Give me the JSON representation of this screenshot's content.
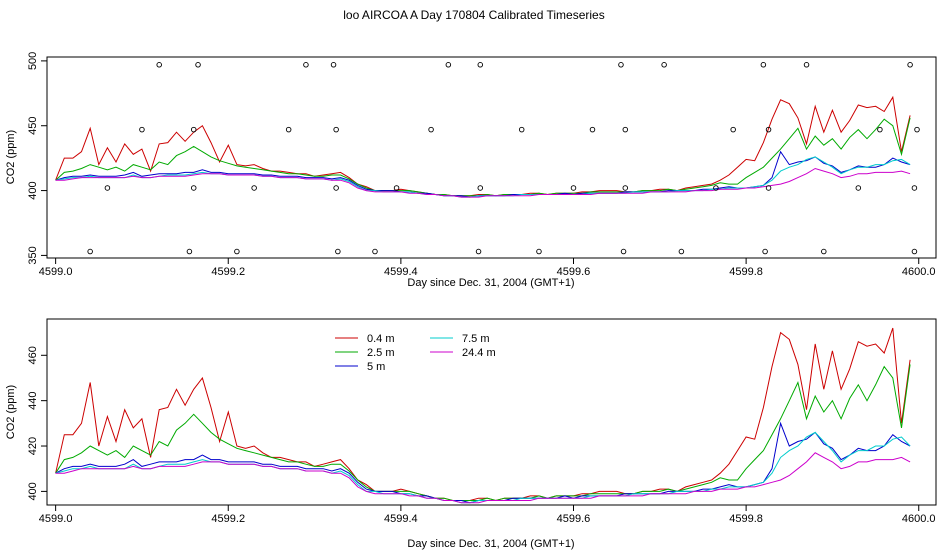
{
  "title": "loo AIRCOA A  Day 170804  Calibrated Timeseries",
  "colors": {
    "0.4 m": "#cc0000",
    "2.5 m": "#00aa00",
    "5 m": "#0000cc",
    "7.5 m": "#00cccc",
    "24.4 m": "#cc00cc"
  },
  "chart_data": [
    {
      "type": "line+scatter",
      "xlabel": "Day since Dec. 31, 2004 (GMT+1)",
      "ylabel": "CO2 (ppm)",
      "xlim": [
        4598.99,
        4600.02
      ],
      "ylim": [
        348,
        503
      ],
      "xticks": [
        4599.0,
        4599.2,
        4599.4,
        4599.6,
        4599.8,
        4600.0
      ],
      "xtick_labels": [
        "4599.0",
        "4599.2",
        "4599.4",
        "4599.6",
        "4599.8",
        "4600.0"
      ],
      "yticks": [
        350,
        400,
        450,
        500
      ],
      "ytick_labels": [
        "350",
        "400",
        "450",
        "500"
      ],
      "x": [
        4599.0,
        4599.01,
        4599.02,
        4599.03,
        4599.04,
        4599.05,
        4599.06,
        4599.07,
        4599.08,
        4599.09,
        4599.1,
        4599.11,
        4599.12,
        4599.13,
        4599.14,
        4599.15,
        4599.16,
        4599.17,
        4599.18,
        4599.19,
        4599.2,
        4599.21,
        4599.22,
        4599.23,
        4599.24,
        4599.25,
        4599.26,
        4599.27,
        4599.28,
        4599.29,
        4599.3,
        4599.31,
        4599.32,
        4599.33,
        4599.34,
        4599.35,
        4599.36,
        4599.37,
        4599.38,
        4599.39,
        4599.4,
        4599.41,
        4599.42,
        4599.43,
        4599.44,
        4599.45,
        4599.46,
        4599.47,
        4599.48,
        4599.49,
        4599.5,
        4599.51,
        4599.52,
        4599.53,
        4599.54,
        4599.55,
        4599.56,
        4599.57,
        4599.58,
        4599.59,
        4599.6,
        4599.61,
        4599.62,
        4599.63,
        4599.64,
        4599.65,
        4599.66,
        4599.67,
        4599.68,
        4599.69,
        4599.7,
        4599.71,
        4599.72,
        4599.73,
        4599.74,
        4599.75,
        4599.76,
        4599.77,
        4599.78,
        4599.79,
        4599.8,
        4599.81,
        4599.82,
        4599.83,
        4599.84,
        4599.85,
        4599.86,
        4599.87,
        4599.88,
        4599.89,
        4599.9,
        4599.91,
        4599.92,
        4599.93,
        4599.94,
        4599.95,
        4599.96,
        4599.97,
        4599.98,
        4599.99
      ],
      "series": [
        {
          "name": "0.4 m",
          "values": [
            408,
            425,
            425,
            430,
            448,
            420,
            433,
            422,
            436,
            428,
            432,
            415,
            436,
            437,
            445,
            438,
            445,
            450,
            437,
            422,
            435,
            420,
            419,
            420,
            417,
            415,
            415,
            414,
            413,
            413,
            411,
            412,
            413,
            414,
            410,
            405,
            403,
            400,
            400,
            400,
            401,
            400,
            399,
            398,
            397,
            397,
            396,
            396,
            396,
            397,
            397,
            396,
            397,
            397,
            397,
            398,
            398,
            397,
            398,
            398,
            398,
            399,
            399,
            400,
            400,
            400,
            399,
            399,
            400,
            400,
            401,
            401,
            400,
            402,
            403,
            404,
            405,
            408,
            412,
            418,
            424,
            423,
            437,
            455,
            470,
            467,
            456,
            436,
            465,
            445,
            462,
            445,
            454,
            466,
            464,
            465,
            461,
            472,
            430,
            458
          ]
        },
        {
          "name": "2.5 m",
          "values": [
            408,
            414,
            415,
            417,
            420,
            418,
            416,
            418,
            415,
            420,
            418,
            416,
            422,
            420,
            427,
            430,
            434,
            430,
            426,
            423,
            421,
            419,
            418,
            417,
            416,
            415,
            414,
            413,
            413,
            412,
            411,
            411,
            412,
            412,
            409,
            405,
            402,
            400,
            400,
            400,
            400,
            400,
            399,
            398,
            397,
            397,
            396,
            396,
            396,
            396,
            397,
            396,
            397,
            397,
            397,
            397,
            398,
            397,
            398,
            398,
            398,
            398,
            399,
            399,
            399,
            399,
            399,
            399,
            400,
            400,
            400,
            401,
            400,
            401,
            402,
            403,
            404,
            406,
            405,
            405,
            410,
            414,
            418,
            425,
            432,
            440,
            448,
            432,
            442,
            435,
            440,
            432,
            441,
            447,
            440,
            447,
            455,
            450,
            428,
            456
          ]
        },
        {
          "name": "5 m",
          "values": [
            408,
            410,
            411,
            411,
            412,
            411,
            411,
            411,
            412,
            414,
            411,
            412,
            413,
            413,
            413,
            414,
            414,
            416,
            414,
            414,
            413,
            413,
            413,
            413,
            412,
            412,
            411,
            411,
            411,
            410,
            410,
            410,
            409,
            410,
            408,
            404,
            401,
            400,
            400,
            400,
            399,
            399,
            398,
            398,
            397,
            396,
            396,
            396,
            395,
            396,
            396,
            396,
            396,
            397,
            397,
            397,
            397,
            397,
            397,
            398,
            397,
            398,
            398,
            398,
            398,
            398,
            399,
            399,
            399,
            399,
            399,
            400,
            400,
            400,
            400,
            401,
            401,
            402,
            403,
            402,
            402,
            403,
            404,
            410,
            430,
            420,
            422,
            423,
            426,
            421,
            419,
            414,
            416,
            419,
            418,
            418,
            420,
            425,
            422,
            420
          ]
        },
        {
          "name": "7.5 m",
          "values": [
            408,
            409,
            410,
            410,
            411,
            410,
            410,
            410,
            410,
            412,
            410,
            410,
            411,
            412,
            412,
            412,
            413,
            414,
            413,
            413,
            412,
            412,
            412,
            412,
            411,
            411,
            410,
            410,
            410,
            409,
            409,
            409,
            408,
            409,
            407,
            403,
            400,
            400,
            399,
            399,
            399,
            399,
            398,
            397,
            397,
            396,
            396,
            395,
            395,
            396,
            396,
            396,
            396,
            396,
            397,
            397,
            397,
            397,
            397,
            397,
            397,
            397,
            398,
            398,
            398,
            398,
            398,
            399,
            399,
            399,
            399,
            399,
            400,
            400,
            400,
            400,
            401,
            401,
            402,
            402,
            402,
            403,
            404,
            408,
            415,
            418,
            420,
            424,
            426,
            422,
            418,
            413,
            416,
            418,
            418,
            420,
            420,
            423,
            424,
            420
          ]
        },
        {
          "name": "24.4 m",
          "values": [
            408,
            408,
            409,
            410,
            410,
            410,
            410,
            410,
            410,
            411,
            410,
            410,
            411,
            411,
            411,
            411,
            412,
            413,
            413,
            413,
            412,
            412,
            412,
            412,
            411,
            411,
            410,
            410,
            410,
            409,
            409,
            409,
            408,
            408,
            406,
            402,
            400,
            399,
            399,
            399,
            399,
            398,
            398,
            397,
            397,
            396,
            396,
            395,
            395,
            395,
            396,
            396,
            396,
            396,
            396,
            396,
            397,
            397,
            397,
            397,
            397,
            397,
            397,
            398,
            398,
            398,
            398,
            398,
            398,
            399,
            399,
            399,
            399,
            399,
            400,
            400,
            400,
            401,
            401,
            401,
            402,
            402,
            403,
            404,
            405,
            407,
            410,
            413,
            417,
            415,
            413,
            410,
            411,
            413,
            413,
            414,
            414,
            414,
            415,
            413
          ]
        }
      ],
      "scatter": {
        "x": [
          4599.04,
          4599.06,
          4599.1,
          4599.12,
          4599.155,
          4599.16,
          4599.16,
          4599.165,
          4599.21,
          4599.23,
          4599.27,
          4599.29,
          4599.322,
          4599.325,
          4599.325,
          4599.327,
          4599.37,
          4599.395,
          4599.435,
          4599.455,
          4599.49,
          4599.492,
          4599.492,
          4599.54,
          4599.56,
          4599.6,
          4599.622,
          4599.655,
          4599.658,
          4599.66,
          4599.66,
          4599.705,
          4599.725,
          4599.765,
          4599.785,
          4599.82,
          4599.822,
          4599.826,
          4599.826,
          4599.87,
          4599.89,
          4599.93,
          4599.955,
          4599.99,
          4599.995,
          4599.995,
          4599.998
        ],
        "y": [
          353,
          402,
          447,
          497,
          353,
          402,
          447,
          497,
          353,
          402,
          447,
          497,
          497,
          447,
          402,
          353,
          353,
          402,
          447,
          497,
          353,
          402,
          497,
          447,
          353,
          402,
          447,
          497,
          353,
          402,
          447,
          497,
          353,
          402,
          447,
          497,
          353,
          402,
          447,
          497,
          353,
          402,
          447,
          497,
          353,
          402,
          447
        ]
      }
    },
    {
      "type": "line",
      "xlabel": "Day since Dec. 31, 2004 (GMT+1)",
      "ylabel": "CO2 (ppm)",
      "xlim": [
        4598.99,
        4600.02
      ],
      "ylim": [
        394,
        476
      ],
      "xticks": [
        4599.0,
        4599.2,
        4599.4,
        4599.6,
        4599.8,
        4600.0
      ],
      "xtick_labels": [
        "4599.0",
        "4599.2",
        "4599.4",
        "4599.6",
        "4599.8",
        "4600.0"
      ],
      "yticks": [
        400,
        420,
        440,
        460
      ],
      "ytick_labels": [
        "400",
        "420",
        "440",
        "460"
      ],
      "legend": {
        "placement": "top-left",
        "entries": [
          "0.4 m",
          "2.5 m",
          "5 m",
          "7.5 m",
          "24.4 m"
        ]
      },
      "series_ref": "same as chart 1"
    }
  ]
}
